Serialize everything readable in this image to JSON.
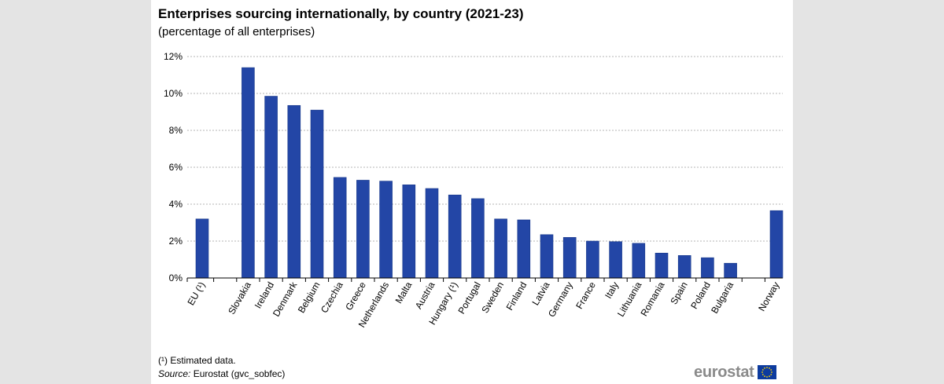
{
  "title": "Enterprises sourcing internationally, by country (2021-23)",
  "subtitle": "(percentage of all enterprises)",
  "footnote": "(¹) Estimated data.",
  "source_label": "Source:",
  "source_text": "Eurostat (gvc_sobfec)",
  "logo_text": "eurostat",
  "colors": {
    "bar": "#2346a6",
    "bar_stroke": "#1a3a8a",
    "grid": "#b4b4b4",
    "eu_flag": "#0d3b9e",
    "eu_stars": "#ffd200"
  },
  "chart_data": {
    "type": "bar",
    "title": "Enterprises sourcing internationally, by country (2021-23)",
    "ylabel": "",
    "xlabel": "",
    "ylim": [
      0,
      12
    ],
    "yticks": [
      "0%",
      "2%",
      "4%",
      "6%",
      "8%",
      "10%",
      "12%"
    ],
    "ytick_values": [
      0,
      2,
      4,
      6,
      8,
      10,
      12
    ],
    "grid": true,
    "categories": [
      "EU (¹)",
      "",
      "Slovakia",
      "Ireland",
      "Denmark",
      "Belgium",
      "Czechia",
      "Greece",
      "Netherlands",
      "Malta",
      "Austria",
      "Hungary (¹)",
      "Portugal",
      "Sweden",
      "Finland",
      "Latvia",
      "Germany",
      "France",
      "Italy",
      "Lithuania",
      "Romania",
      "Spain",
      "Poland",
      "Bulgaria",
      "",
      "Norway"
    ],
    "values": [
      3.2,
      null,
      11.4,
      9.85,
      9.35,
      9.1,
      5.45,
      5.3,
      5.25,
      5.05,
      4.85,
      4.5,
      4.3,
      3.2,
      3.15,
      2.35,
      2.2,
      2.0,
      1.97,
      1.88,
      1.35,
      1.22,
      1.1,
      0.8,
      null,
      3.65
    ]
  }
}
